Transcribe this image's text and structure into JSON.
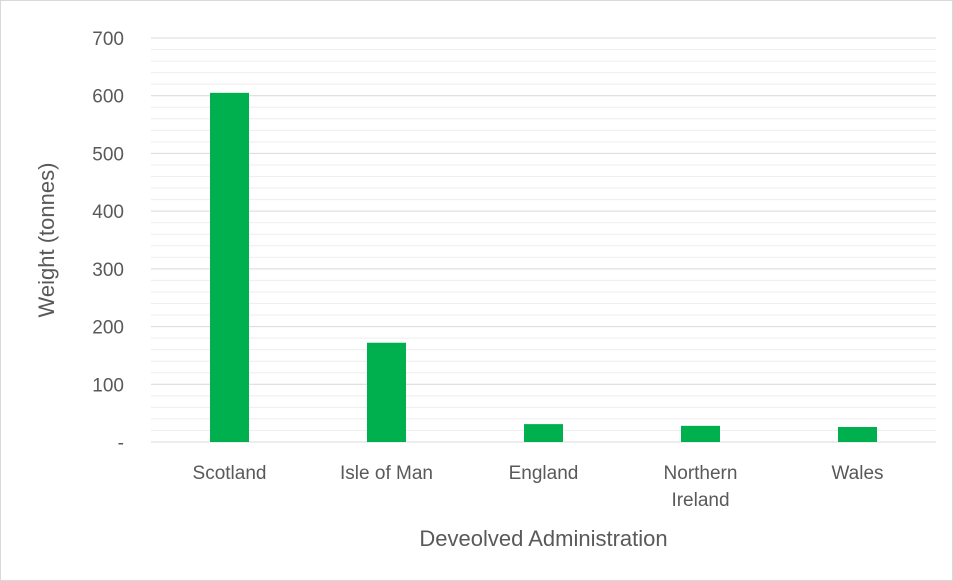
{
  "chart_data": {
    "type": "bar",
    "title": "",
    "xlabel": "Deveolved Administration",
    "ylabel": "Weight (tonnes)",
    "categories": [
      [
        "Scotland"
      ],
      [
        "Isle of Man"
      ],
      [
        "England"
      ],
      [
        "Northern",
        "Ireland"
      ],
      [
        "Wales"
      ]
    ],
    "values": [
      605,
      172,
      31,
      28,
      26
    ],
    "ylim": [
      0,
      700
    ],
    "y_ticks": [
      0,
      100,
      200,
      300,
      400,
      500,
      600,
      700
    ],
    "y_tick_labels": [
      "-",
      "100",
      "200",
      "300",
      "400",
      "500",
      "600",
      "700"
    ],
    "grid": true,
    "minor_grid": true,
    "legend": "none",
    "colors": {
      "bar": "#00b04f",
      "major_grid": "#d9d9d9",
      "minor_grid": "#eeeeee",
      "axis": "#d9d9d9",
      "text": "#595959"
    }
  }
}
